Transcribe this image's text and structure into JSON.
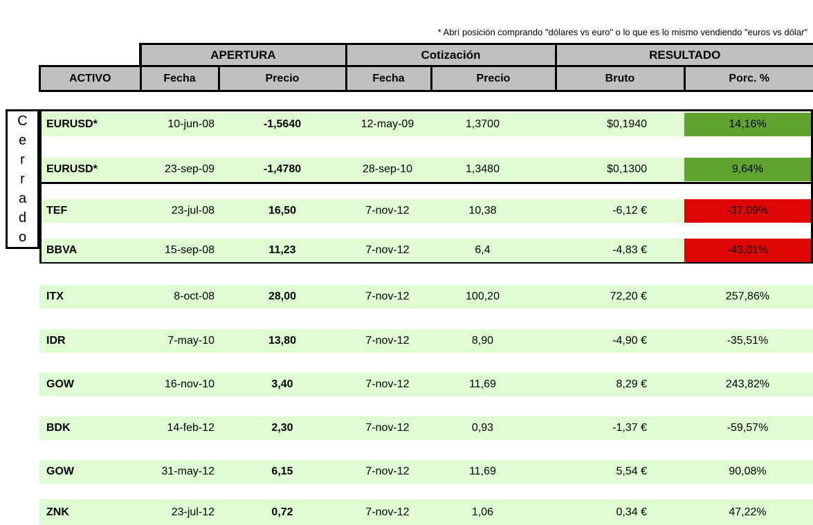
{
  "note": "* Abrí posición comprando \"dólares vs euro\" o lo que es lo mismo vendiendo \"euros vs dólar\"",
  "header": {
    "groups": [
      {
        "label": "APERTURA"
      },
      {
        "label": "Cotización"
      },
      {
        "label": "RESULTADO"
      }
    ],
    "columns": [
      "ACTIVO",
      "Fecha",
      "Precio",
      "Fecha",
      "Precio",
      "Bruto",
      "Porc. %"
    ]
  },
  "closed_label": "Cerrado",
  "closed_rows": [
    {
      "activo": "EURUSD*",
      "fecha_apertura": "10-jun-08",
      "precio_apertura": "-1,5640",
      "fecha_cotizacion": "12-may-09",
      "precio_cotizacion": "1,3700",
      "bruto": "$0,1940",
      "porc": "14,16%",
      "porc_style": "gain"
    },
    {
      "activo": "EURUSD*",
      "fecha_apertura": "23-sep-09",
      "precio_apertura": "-1,4780",
      "fecha_cotizacion": "28-sep-10",
      "precio_cotizacion": "1,3480",
      "bruto": "$0,1300",
      "porc": "9,64%",
      "porc_style": "gain"
    },
    {
      "activo": "TEF",
      "fecha_apertura": "23-jul-08",
      "precio_apertura": "16,50",
      "fecha_cotizacion": "7-nov-12",
      "precio_cotizacion": "10,38",
      "bruto": "-6,12 €",
      "porc": "-37,09%",
      "porc_style": "loss"
    },
    {
      "activo": "BBVA",
      "fecha_apertura": "15-sep-08",
      "precio_apertura": "11,23",
      "fecha_cotizacion": "7-nov-12",
      "precio_cotizacion": "6,4",
      "bruto": "-4,83 €",
      "porc": "-43,01%",
      "porc_style": "loss"
    }
  ],
  "open_rows": [
    {
      "activo": "ITX",
      "fecha_apertura": "8-oct-08",
      "precio_apertura": "28,00",
      "fecha_cotizacion": "7-nov-12",
      "precio_cotizacion": "100,20",
      "bruto": "72,20 €",
      "porc": "257,86%"
    },
    {
      "activo": "IDR",
      "fecha_apertura": "7-may-10",
      "precio_apertura": "13,80",
      "fecha_cotizacion": "7-nov-12",
      "precio_cotizacion": "8,90",
      "bruto": "-4,90 €",
      "porc": "-35,51%"
    },
    {
      "activo": "GOW",
      "fecha_apertura": "16-nov-10",
      "precio_apertura": "3,40",
      "fecha_cotizacion": "7-nov-12",
      "precio_cotizacion": "11,69",
      "bruto": "8,29 €",
      "porc": "243,82%"
    },
    {
      "activo": "BDK",
      "fecha_apertura": "14-feb-12",
      "precio_apertura": "2,30",
      "fecha_cotizacion": "7-nov-12",
      "precio_cotizacion": "0,93",
      "bruto": "-1,37 €",
      "porc": "-59,57%"
    },
    {
      "activo": "GOW",
      "fecha_apertura": "31-may-12",
      "precio_apertura": "6,15",
      "fecha_cotizacion": "7-nov-12",
      "precio_cotizacion": "11,69",
      "bruto": "5,54 €",
      "porc": "90,08%"
    },
    {
      "activo": "ZNK",
      "fecha_apertura": "23-jul-12",
      "precio_apertura": "0,72",
      "fecha_cotizacion": "7-nov-12",
      "precio_cotizacion": "1,06",
      "bruto": "0,34 €",
      "porc": "47,22%"
    }
  ],
  "colors": {
    "row_bg": "#DFFCD3",
    "gain_bg": "#5EA42E",
    "loss_bg": "#DE0604",
    "header_bg": "#C0C0C0"
  }
}
